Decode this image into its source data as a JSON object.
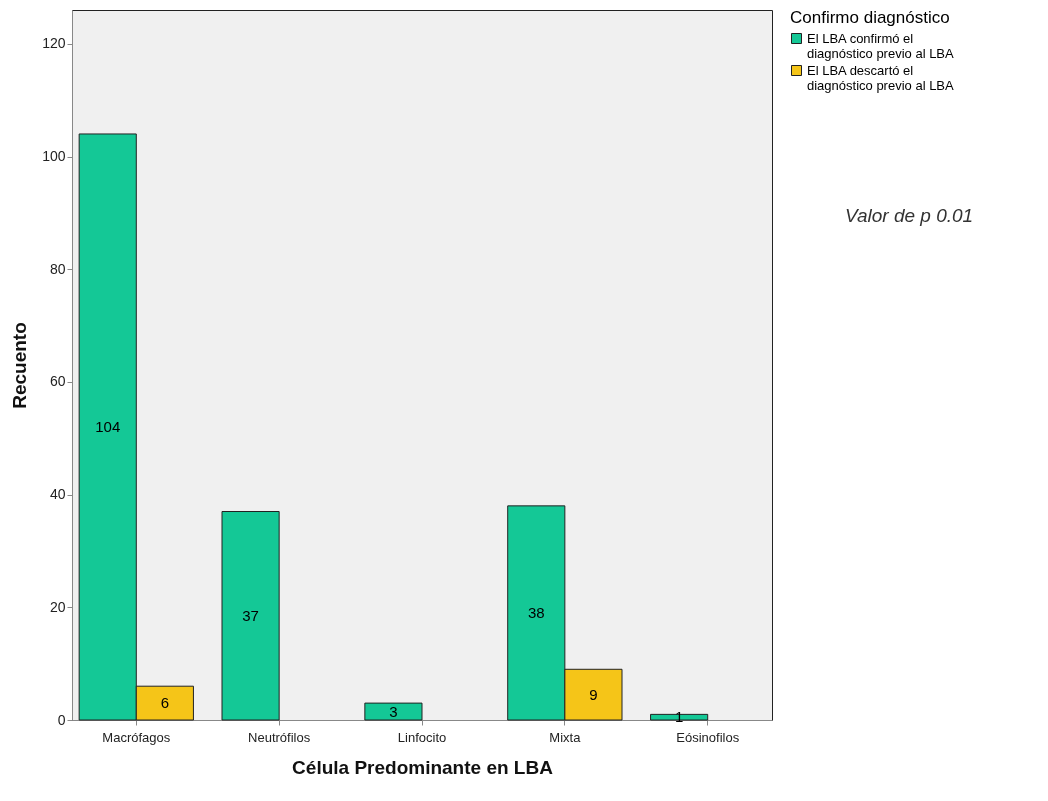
{
  "chart_data": {
    "type": "bar",
    "xlabel": "Célula Predominante en LBA",
    "ylabel": "Recuento",
    "legend_title": "Confirmo diagnóstico",
    "categories": [
      "Macrófagos",
      "Neutrófilos",
      "Linfocito",
      "Mixta",
      "Eósinofilos"
    ],
    "series": [
      {
        "name": "El LBA confirmó el diagnóstico previo al LBA",
        "color": "#14c896",
        "values": [
          104,
          37,
          3,
          38,
          1
        ]
      },
      {
        "name": "El LBA descartó el diagnóstico previo al LBA",
        "color": "#f5c518",
        "values": [
          6,
          null,
          null,
          9,
          null
        ]
      }
    ],
    "ylim": [
      0,
      126
    ],
    "yticks": [
      0,
      20,
      40,
      60,
      80,
      100,
      120
    ],
    "grid": false,
    "legend": "top right",
    "data_labels": true,
    "annotations": [
      "Valor de p 0.01"
    ]
  }
}
